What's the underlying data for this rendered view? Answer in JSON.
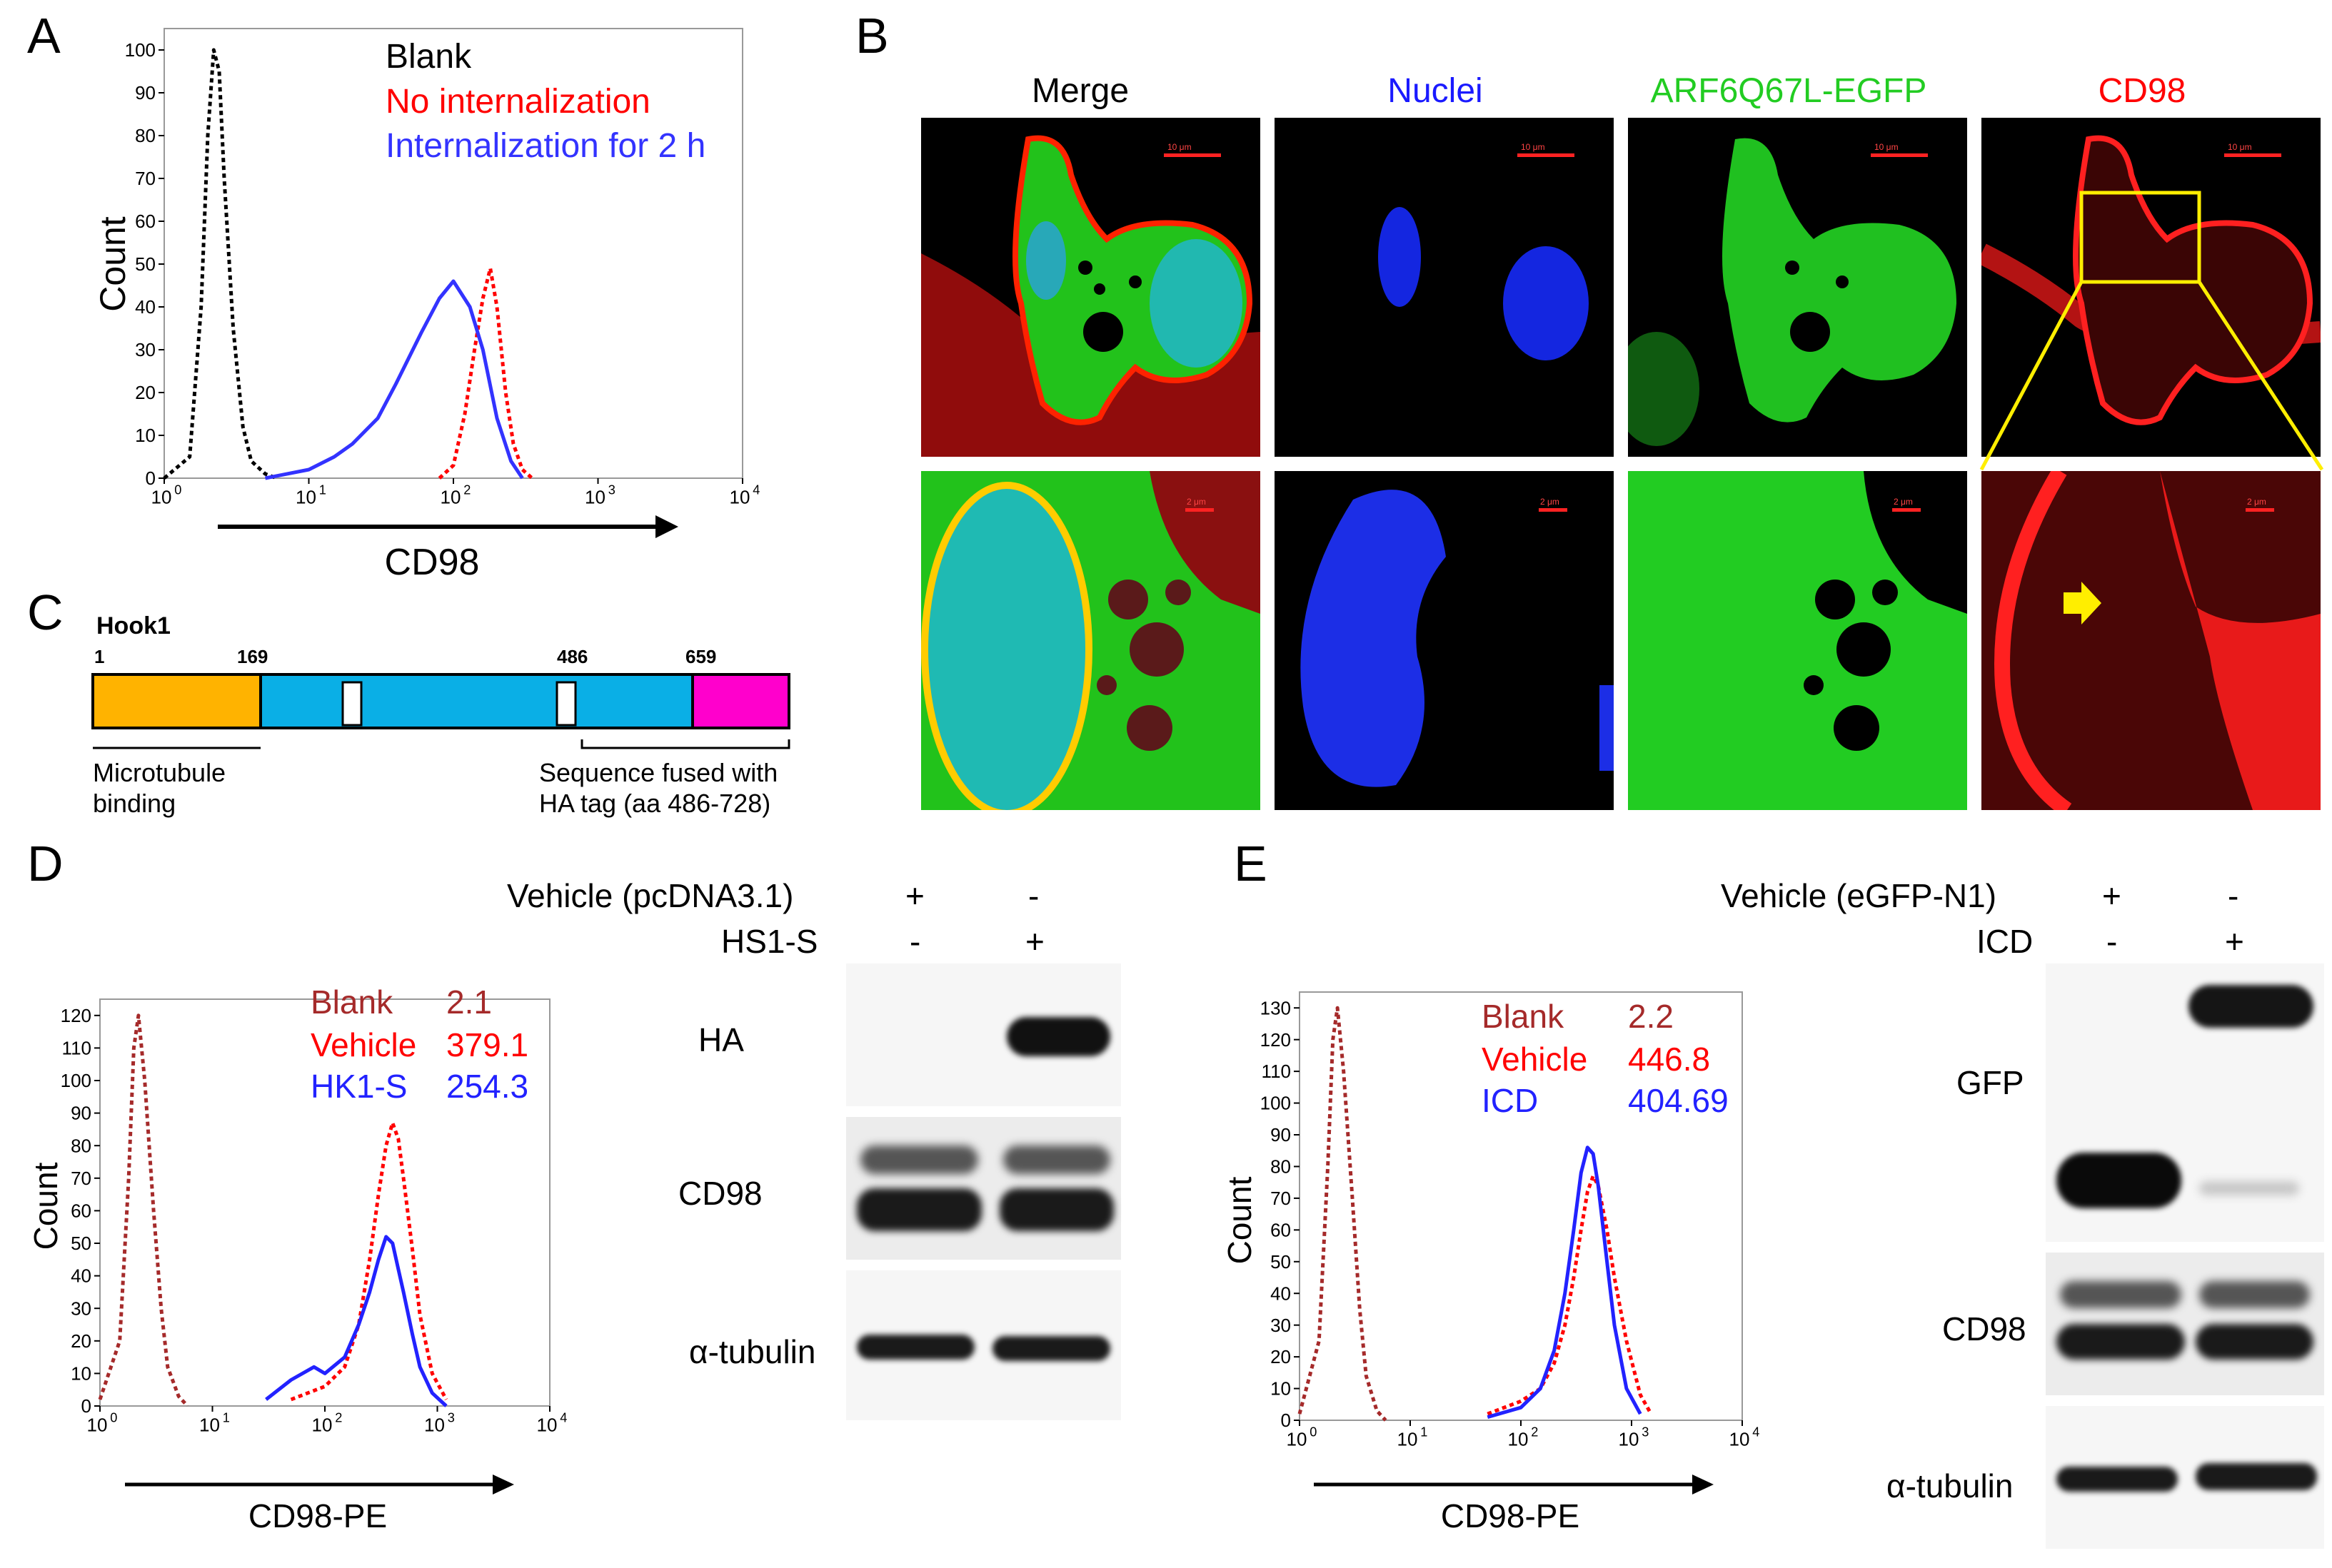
{
  "panel_letters": {
    "a": "A",
    "b": "B",
    "c": "C",
    "d": "D",
    "e": "E"
  },
  "panelA": {
    "legend": [
      {
        "text": "Blank",
        "color": "#000000"
      },
      {
        "text": "No internalization",
        "color": "#ff0000"
      },
      {
        "text": "Internalization for 2 h",
        "color": "#3333ff"
      }
    ],
    "ylabel": "Count",
    "xlabel": "CD98",
    "yticks": [
      "0",
      "10",
      "20",
      "30",
      "40",
      "50",
      "60",
      "70",
      "80",
      "90",
      "100"
    ],
    "xticks": [
      "10",
      "10",
      "10",
      "10",
      "10"
    ],
    "xexps": [
      "0",
      "1",
      "2",
      "3",
      "4"
    ]
  },
  "panelB": {
    "columns": [
      {
        "title": "Merge",
        "color": "#000000"
      },
      {
        "title": "Nuclei",
        "color": "#1a1aff"
      },
      {
        "title": "ARF6Q67L-EGFP",
        "color": "#22cc22"
      },
      {
        "title": "CD98",
        "color": "#ff0000"
      }
    ],
    "scalebar_top": "10 μm",
    "scalebar_bottom": "2 μm"
  },
  "panelC": {
    "protein": "Hook1",
    "positions": [
      "1",
      "169",
      "486",
      "659"
    ],
    "left_caption_1": "Microtubule",
    "left_caption_2": "binding",
    "right_caption_1": "Sequence fused with",
    "right_caption_2": "HA tag (aa 486-728)",
    "colors": {
      "domain1": "#ffb300",
      "domain2": "#0aafe6",
      "domain3": "#ff00cc"
    }
  },
  "panelD": {
    "ylabel": "Count",
    "xlabel": "CD98-PE",
    "yticks": [
      "0",
      "10",
      "20",
      "30",
      "40",
      "50",
      "60",
      "70",
      "80",
      "90",
      "100",
      "110",
      "120"
    ],
    "legend": [
      {
        "name": "Blank",
        "value": "2.1",
        "color": "#a52a2a"
      },
      {
        "name": "Vehicle",
        "value": "379.1",
        "color": "#ff0000"
      },
      {
        "name": "HK1-S",
        "value": "254.3",
        "color": "#2222ff"
      }
    ],
    "blot_header": [
      {
        "label": "Vehicle (pcDNA3.1)",
        "lane1": "+",
        "lane2": "-"
      },
      {
        "label": "HS1-S",
        "lane1": "-",
        "lane2": "+"
      }
    ],
    "blot_rows": [
      "HA",
      "CD98",
      "α-tubulin"
    ]
  },
  "panelE": {
    "ylabel": "Count",
    "xlabel": "CD98-PE",
    "yticks": [
      "0",
      "10",
      "20",
      "30",
      "40",
      "50",
      "60",
      "70",
      "80",
      "90",
      "100",
      "110",
      "120",
      "130"
    ],
    "legend": [
      {
        "name": "Blank",
        "value": "2.2",
        "color": "#a52a2a"
      },
      {
        "name": "Vehicle",
        "value": "446.8",
        "color": "#ff0000"
      },
      {
        "name": "ICD",
        "value": "404.69",
        "color": "#2222ff"
      }
    ],
    "blot_header": [
      {
        "label": "Vehicle (eGFP-N1)",
        "lane1": "+",
        "lane2": "-"
      },
      {
        "label": "ICD",
        "lane1": "-",
        "lane2": "+"
      }
    ],
    "blot_rows": [
      "GFP",
      "CD98",
      "α-tubulin"
    ]
  },
  "chart_data": [
    {
      "type": "line",
      "xscale": "log",
      "xlim": [
        1,
        10000
      ],
      "ylim": [
        0,
        105
      ],
      "ylabel": "Count",
      "xlabel": "CD98",
      "series": [
        {
          "name": "Blank",
          "color": "#000000",
          "style": "dotted",
          "x": [
            1,
            1.5,
            1.8,
            2.0,
            2.2,
            2.4,
            2.6,
            3.0,
            3.5,
            4.0,
            5.0,
            6.0
          ],
          "y": [
            0,
            5,
            40,
            80,
            100,
            95,
            70,
            35,
            12,
            4,
            1,
            0
          ]
        },
        {
          "name": "No internalization",
          "color": "#ff0000",
          "style": "dotted",
          "x": [
            80,
            100,
            120,
            140,
            160,
            180,
            200,
            230,
            260,
            300,
            350
          ],
          "y": [
            0,
            3,
            15,
            30,
            42,
            49,
            40,
            20,
            8,
            2,
            0
          ]
        },
        {
          "name": "Internalization for 2 h",
          "color": "#3333ff",
          "style": "solid",
          "x": [
            5,
            10,
            15,
            20,
            30,
            40,
            60,
            80,
            100,
            130,
            160,
            200,
            250,
            300
          ],
          "y": [
            0,
            2,
            5,
            8,
            14,
            22,
            34,
            42,
            46,
            40,
            30,
            14,
            4,
            0
          ]
        }
      ]
    },
    {
      "type": "line",
      "xscale": "log",
      "xlim": [
        1,
        10000
      ],
      "ylim": [
        0,
        125
      ],
      "ylabel": "Count",
      "xlabel": "CD98-PE",
      "series": [
        {
          "name": "Blank",
          "color": "#a52a2a",
          "style": "dotted",
          "x": [
            1,
            1.5,
            1.8,
            2.0,
            2.2,
            2.5,
            3.0,
            3.5,
            4,
            5,
            6
          ],
          "y": [
            2,
            20,
            70,
            110,
            120,
            100,
            60,
            30,
            12,
            3,
            0
          ]
        },
        {
          "name": "Vehicle",
          "color": "#ff0000",
          "style": "dotted",
          "x": [
            50,
            100,
            150,
            200,
            250,
            300,
            350,
            400,
            450,
            500,
            600,
            700,
            900,
            1200
          ],
          "y": [
            2,
            6,
            12,
            25,
            45,
            65,
            80,
            87,
            82,
            70,
            48,
            28,
            10,
            2
          ]
        },
        {
          "name": "HK1-S",
          "color": "#2222ff",
          "style": "solid",
          "x": [
            30,
            50,
            80,
            100,
            150,
            200,
            250,
            300,
            350,
            400,
            450,
            500,
            600,
            700,
            900,
            1200
          ],
          "y": [
            2,
            8,
            12,
            10,
            15,
            25,
            35,
            45,
            52,
            50,
            42,
            35,
            22,
            12,
            4,
            0
          ]
        }
      ]
    },
    {
      "type": "line",
      "xscale": "log",
      "xlim": [
        1,
        10000
      ],
      "ylim": [
        0,
        135
      ],
      "ylabel": "Count",
      "xlabel": "CD98-PE",
      "series": [
        {
          "name": "Blank",
          "color": "#a52a2a",
          "style": "dotted",
          "x": [
            1,
            1.5,
            1.8,
            2.0,
            2.2,
            2.5,
            3.0,
            3.5,
            4,
            5,
            6
          ],
          "y": [
            2,
            25,
            80,
            120,
            130,
            110,
            70,
            35,
            14,
            3,
            0
          ]
        },
        {
          "name": "Vehicle",
          "color": "#ff0000",
          "style": "dotted",
          "x": [
            50,
            100,
            150,
            200,
            250,
            300,
            350,
            400,
            450,
            500,
            600,
            700,
            900,
            1200,
            1500
          ],
          "y": [
            2,
            6,
            10,
            18,
            30,
            45,
            60,
            72,
            77,
            74,
            60,
            45,
            25,
            8,
            2
          ]
        },
        {
          "name": "ICD",
          "color": "#2222ff",
          "style": "solid",
          "x": [
            50,
            100,
            150,
            200,
            250,
            300,
            350,
            400,
            450,
            500,
            600,
            700,
            900,
            1200
          ],
          "y": [
            1,
            4,
            10,
            22,
            40,
            60,
            78,
            86,
            84,
            74,
            50,
            30,
            10,
            2
          ]
        }
      ]
    }
  ]
}
